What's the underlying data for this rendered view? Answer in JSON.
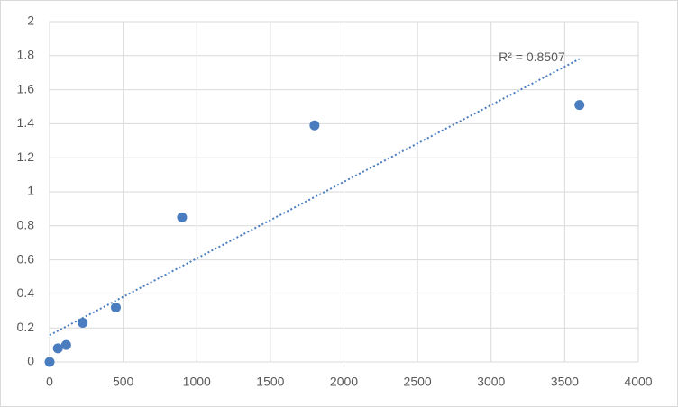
{
  "chart_data": {
    "type": "scatter",
    "series": [
      {
        "color": "#4a7dbf",
        "x": [
          0,
          56.25,
          112.5,
          225,
          450,
          900,
          1800,
          3600
        ],
        "values": [
          0,
          0.08,
          0.1,
          0.23,
          0.32,
          0.85,
          1.39,
          1.51
        ]
      }
    ],
    "trendline": "linear",
    "trendline_label": "R² = 0.8507",
    "xlim": [
      0,
      4000
    ],
    "xticks": [
      0,
      500,
      1000,
      1500,
      2000,
      2500,
      3000,
      3500,
      4000
    ],
    "ylim": [
      0,
      2
    ],
    "yticks": [
      0,
      0.2,
      0.4,
      0.6,
      0.8,
      1,
      1.2,
      1.4,
      1.6,
      1.8,
      2
    ],
    "grid": true
  }
}
